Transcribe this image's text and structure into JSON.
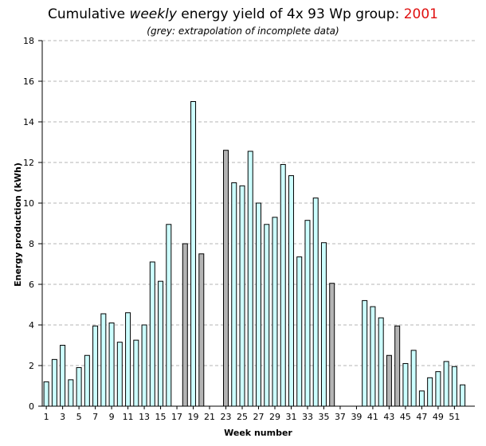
{
  "title": {
    "prefix": "Cumulative ",
    "emphasis": "weekly",
    "middle": "  energy yield of 4x 93 Wp group: ",
    "year": "2001"
  },
  "subtitle": "(grey: extrapolation of incomplete data)",
  "colors": {
    "complete": "#ccffff",
    "extrapolated": "#b4b4b4",
    "year_highlight": "#e01010",
    "grid": "#b4b4b4"
  },
  "chart_data": {
    "type": "bar",
    "title": "Cumulative weekly energy yield of 4x 93 Wp group: 2001",
    "subtitle": "(grey: extrapolation of incomplete data)",
    "xlabel": "Week number",
    "ylabel": "Energy production (kWh)",
    "ylim": [
      0,
      18
    ],
    "yticks": [
      0,
      2,
      4,
      6,
      8,
      10,
      12,
      14,
      16,
      18
    ],
    "xticks": [
      1,
      3,
      5,
      7,
      9,
      11,
      13,
      15,
      17,
      19,
      21,
      23,
      25,
      27,
      29,
      31,
      33,
      35,
      37,
      39,
      41,
      43,
      45,
      47,
      49,
      51
    ],
    "grid": "horizontal dashed",
    "categories": [
      1,
      2,
      3,
      4,
      5,
      6,
      7,
      8,
      9,
      10,
      11,
      12,
      13,
      14,
      15,
      16,
      17,
      18,
      19,
      20,
      21,
      22,
      23,
      24,
      25,
      26,
      27,
      28,
      29,
      30,
      31,
      32,
      33,
      34,
      35,
      36,
      37,
      38,
      39,
      40,
      41,
      42,
      43,
      44,
      45,
      46,
      47,
      48,
      49,
      50,
      51,
      52,
      53
    ],
    "values": [
      1.2,
      2.3,
      3.0,
      1.3,
      1.9,
      2.5,
      3.95,
      4.55,
      4.1,
      3.15,
      4.6,
      3.25,
      4.0,
      7.1,
      6.15,
      8.95,
      0,
      8.0,
      15.0,
      7.5,
      0,
      0,
      12.6,
      11.0,
      10.85,
      12.55,
      10.0,
      8.95,
      9.3,
      11.9,
      11.35,
      7.35,
      9.15,
      10.25,
      8.05,
      6.05,
      0,
      0,
      0,
      5.2,
      4.9,
      4.35,
      2.5,
      3.95,
      2.1,
      2.75,
      0.75,
      1.4,
      1.7,
      2.2,
      1.95,
      1.05,
      0
    ],
    "extrapolated": [
      false,
      false,
      false,
      false,
      false,
      false,
      false,
      false,
      false,
      false,
      false,
      false,
      false,
      false,
      false,
      false,
      false,
      true,
      false,
      true,
      false,
      false,
      true,
      false,
      false,
      false,
      false,
      false,
      false,
      false,
      false,
      false,
      false,
      false,
      false,
      true,
      false,
      false,
      false,
      false,
      false,
      false,
      true,
      true,
      false,
      false,
      false,
      false,
      false,
      false,
      false,
      false,
      false
    ],
    "legend": "subtitle note: grey bars are extrapolations of incomplete data"
  }
}
